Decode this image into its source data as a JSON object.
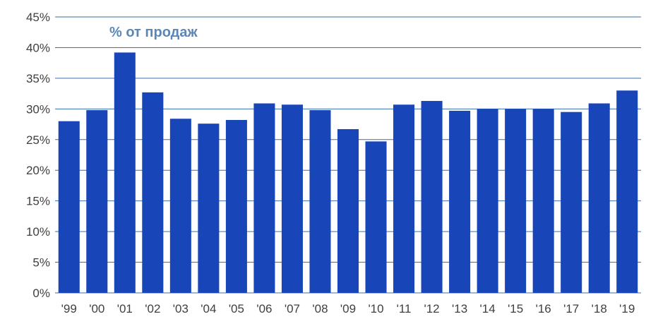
{
  "chart_data": {
    "type": "bar",
    "title": "% от продаж",
    "categories": [
      "'99",
      "'00",
      "'01",
      "'02",
      "'03",
      "'04",
      "'05",
      "'06",
      "'07",
      "'08",
      "'09",
      "'10",
      "'11",
      "'12",
      "'13",
      "'14",
      "'15",
      "'16",
      "'17",
      "'18",
      "'19"
    ],
    "values": [
      28.0,
      29.8,
      39.2,
      32.7,
      28.4,
      27.6,
      28.2,
      30.9,
      30.7,
      29.8,
      26.7,
      24.7,
      30.7,
      31.3,
      29.7,
      30.0,
      30.0,
      30.0,
      29.5,
      30.9,
      33.0
    ],
    "y_ticks": [
      "0%",
      "5%",
      "10%",
      "15%",
      "20%",
      "25%",
      "30%",
      "35%",
      "40%",
      "45%"
    ],
    "ylim": [
      0,
      45
    ],
    "grid": true,
    "bar_color": "#1845b8",
    "grid_color": "#3a6fa8",
    "xlabel": "",
    "ylabel": ""
  }
}
